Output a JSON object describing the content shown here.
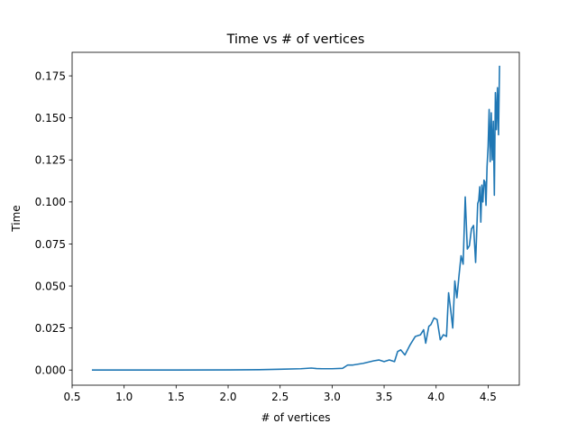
{
  "chart_data": {
    "type": "line",
    "title": "Time vs # of vertices",
    "xlabel": "# of vertices",
    "ylabel": "Time",
    "xlim": [
      0.5,
      4.8
    ],
    "ylim": [
      -0.009,
      0.189
    ],
    "grid": false,
    "legend": "none",
    "xticks": [
      0.5,
      1.0,
      1.5,
      2.0,
      2.5,
      3.0,
      3.5,
      4.0,
      4.5
    ],
    "xtick_labels": [
      "0.5",
      "1.0",
      "1.5",
      "2.0",
      "2.5",
      "3.0",
      "3.5",
      "4.0",
      "4.5"
    ],
    "yticks": [
      0.0,
      0.025,
      0.05,
      0.075,
      0.1,
      0.125,
      0.15,
      0.175
    ],
    "ytick_labels": [
      "0.000",
      "0.025",
      "0.050",
      "0.075",
      "0.100",
      "0.125",
      "0.150",
      "0.175"
    ],
    "series": [
      {
        "color": "#1f77b4",
        "x": [
          0.69,
          1.0,
          1.5,
          2.0,
          2.3,
          2.5,
          2.7,
          2.8,
          2.85,
          2.9,
          3.0,
          3.1,
          3.15,
          3.2,
          3.3,
          3.4,
          3.45,
          3.5,
          3.55,
          3.6,
          3.63,
          3.66,
          3.7,
          3.75,
          3.8,
          3.85,
          3.88,
          3.9,
          3.93,
          3.95,
          3.98,
          4.01,
          4.04,
          4.07,
          4.1,
          4.12,
          4.14,
          4.16,
          4.18,
          4.2,
          4.22,
          4.24,
          4.26,
          4.28,
          4.3,
          4.32,
          4.34,
          4.36,
          4.38,
          4.4,
          4.41,
          4.42,
          4.43,
          4.44,
          4.45,
          4.46,
          4.47,
          4.48,
          4.49,
          4.5,
          4.51,
          4.52,
          4.53,
          4.54,
          4.55,
          4.56,
          4.57,
          4.58,
          4.59,
          4.6,
          4.61
        ],
        "y": [
          0.0,
          0.0,
          0.0,
          0.0001,
          0.0002,
          0.0005,
          0.0008,
          0.0012,
          0.0009,
          0.0008,
          0.0008,
          0.001,
          0.003,
          0.003,
          0.004,
          0.0055,
          0.006,
          0.005,
          0.006,
          0.005,
          0.011,
          0.012,
          0.009,
          0.015,
          0.02,
          0.021,
          0.024,
          0.016,
          0.026,
          0.027,
          0.031,
          0.03,
          0.018,
          0.021,
          0.02,
          0.046,
          0.036,
          0.025,
          0.053,
          0.043,
          0.056,
          0.068,
          0.063,
          0.103,
          0.072,
          0.074,
          0.084,
          0.086,
          0.064,
          0.099,
          0.101,
          0.109,
          0.088,
          0.11,
          0.1,
          0.113,
          0.112,
          0.098,
          0.121,
          0.133,
          0.155,
          0.124,
          0.153,
          0.125,
          0.148,
          0.104,
          0.165,
          0.143,
          0.168,
          0.14,
          0.181
        ]
      }
    ]
  }
}
